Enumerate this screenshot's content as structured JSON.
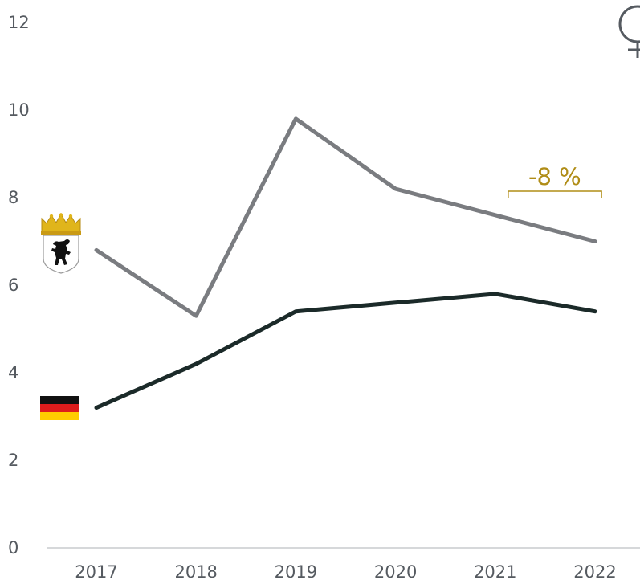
{
  "chart_data": {
    "type": "line",
    "title": "",
    "xlabel": "",
    "ylabel": "",
    "x": [
      "2017",
      "2018",
      "2019",
      "2020",
      "2021",
      "2022"
    ],
    "ylim": [
      0,
      12
    ],
    "yticks": [
      "0",
      "2",
      "4",
      "6",
      "8",
      "10",
      "12"
    ],
    "grid": false,
    "series": [
      {
        "id": "berlin",
        "color": "#7a7c80",
        "icon": "berlin-coat-of-arms-icon",
        "values": [
          6.8,
          5.3,
          9.8,
          8.2,
          7.6,
          7.0
        ]
      },
      {
        "id": "germany",
        "color": "#1b2a29",
        "icon": "germany-flag-icon",
        "values": [
          3.2,
          4.2,
          5.4,
          5.6,
          5.8,
          5.4
        ]
      }
    ],
    "annotation": {
      "text": "-8 %",
      "from": "2021",
      "to": "2022",
      "color": "#b08d17"
    },
    "corner_icon": "female-symbol-icon",
    "axis_color": "#c9cbce"
  }
}
